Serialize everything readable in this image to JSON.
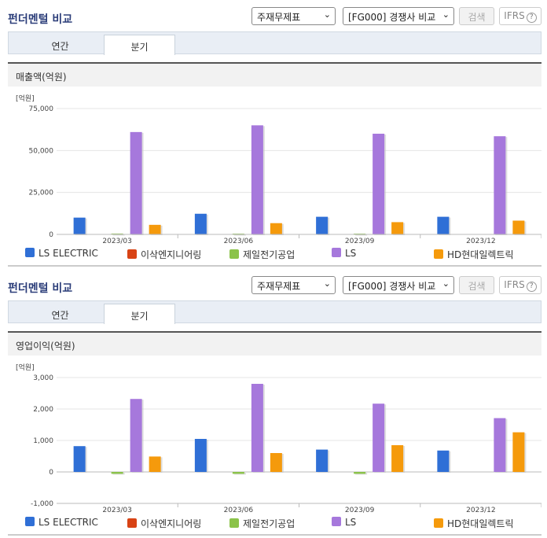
{
  "sections": [
    {
      "header": {
        "title": "펀더멘털 비교",
        "select1": "주재무제표",
        "select2": "[FG000] 경쟁사 비교",
        "search_label": "검색",
        "ifrs_label": "IFRS"
      },
      "tabs": [
        {
          "label": "연간"
        },
        {
          "label": "분기"
        }
      ],
      "active_tab": 1,
      "metric_label": "매출액(억원)",
      "unit_label": "[억원]"
    },
    {
      "header": {
        "title": "펀더멘털 비교",
        "select1": "주재무제표",
        "select2": "[FG000] 경쟁사 비교",
        "search_label": "검색",
        "ifrs_label": "IFRS"
      },
      "tabs": [
        {
          "label": "연간"
        },
        {
          "label": "분기"
        }
      ],
      "active_tab": 1,
      "metric_label": "영업이익(억원)",
      "unit_label": "[억원]"
    }
  ],
  "help_icon_text": "?",
  "colors": {
    "LS ELECTRIC": "#2f6fd6",
    "이삭엔지니어링": "#d84315",
    "제일전기공업": "#8bc34a",
    "LS": "#a678dc",
    "HD현대일렉트릭": "#f59a0c"
  },
  "chart_data": [
    {
      "type": "bar",
      "title": "매출액(억원)",
      "categories": [
        "2023/03",
        "2023/06",
        "2023/09",
        "2023/12"
      ],
      "ylim": [
        0,
        75000
      ],
      "yticks": [
        0,
        25000,
        50000,
        75000
      ],
      "ytick_labels": [
        "0",
        "25,000",
        "50,000",
        "75,000"
      ],
      "grid": true,
      "legend": "bottom",
      "series": [
        {
          "name": "LS ELECTRIC",
          "values": [
            10000,
            12300,
            10500,
            10500
          ]
        },
        {
          "name": "이삭엔지니어링",
          "values": [
            0,
            0,
            0,
            0
          ]
        },
        {
          "name": "제일전기공업",
          "values": [
            500,
            450,
            450,
            0
          ]
        },
        {
          "name": "LS",
          "values": [
            61000,
            65000,
            60000,
            58500
          ]
        },
        {
          "name": "HD현대일렉트릭",
          "values": [
            5700,
            6700,
            7300,
            8200
          ]
        }
      ]
    },
    {
      "type": "bar",
      "title": "영업이익(억원)",
      "categories": [
        "2023/03",
        "2023/06",
        "2023/09",
        "2023/12"
      ],
      "ylim": [
        -1000,
        3000
      ],
      "yticks": [
        -1000,
        0,
        1000,
        2000,
        3000
      ],
      "ytick_labels": [
        "-1,000",
        "0",
        "1,000",
        "2,000",
        "3,000"
      ],
      "grid": true,
      "legend": "bottom",
      "series": [
        {
          "name": "LS ELECTRIC",
          "values": [
            820,
            1050,
            710,
            680
          ]
        },
        {
          "name": "이삭엔지니어링",
          "values": [
            0,
            0,
            0,
            0
          ]
        },
        {
          "name": "제일전기공업",
          "values": [
            -60,
            -60,
            -60,
            0
          ]
        },
        {
          "name": "LS",
          "values": [
            2320,
            2800,
            2170,
            1710
          ]
        },
        {
          "name": "HD현대일렉트릭",
          "values": [
            490,
            600,
            850,
            1260
          ]
        }
      ]
    }
  ]
}
